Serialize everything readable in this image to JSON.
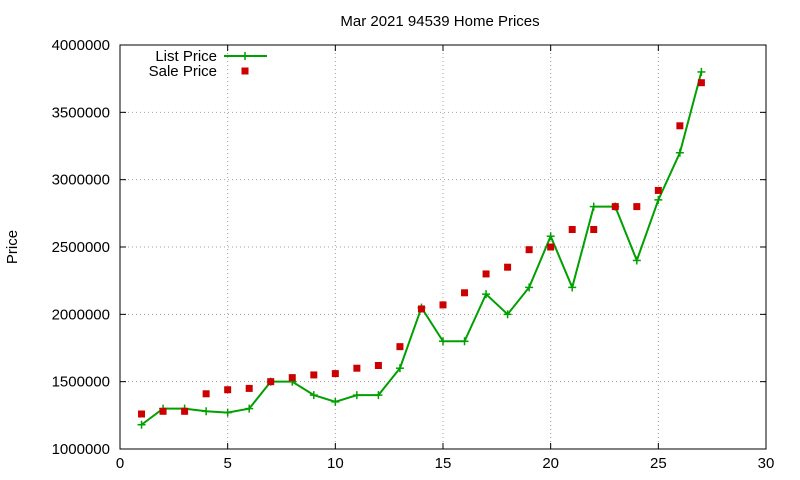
{
  "chart_data": {
    "type": "line",
    "title": "Mar 2021 94539 Home Prices",
    "xlabel": "",
    "ylabel": "Price",
    "xlim": [
      0,
      30
    ],
    "ylim": [
      1000000,
      4000000
    ],
    "x_ticks": [
      0,
      5,
      10,
      15,
      20,
      25,
      30
    ],
    "y_ticks": [
      1000000,
      1500000,
      2000000,
      2500000,
      3000000,
      3500000,
      4000000
    ],
    "x_tick_labels": [
      "0",
      "5",
      "10",
      "15",
      "20",
      "25",
      "30"
    ],
    "y_tick_labels": [
      "1000000",
      "1500000",
      "2000000",
      "2500000",
      "3000000",
      "3500000",
      "4000000"
    ],
    "grid": true,
    "legend_position": "top-left",
    "x": [
      1,
      2,
      3,
      4,
      5,
      6,
      7,
      8,
      9,
      10,
      11,
      12,
      13,
      14,
      15,
      16,
      17,
      18,
      19,
      20,
      21,
      22,
      23,
      24,
      25,
      26,
      27
    ],
    "series": [
      {
        "name": "List Price",
        "style": "line-with-plus-markers",
        "color": "#00a000",
        "values": [
          1180000,
          1300000,
          1300000,
          1280000,
          1270000,
          1300000,
          1500000,
          1500000,
          1400000,
          1350000,
          1400000,
          1400000,
          1600000,
          2050000,
          1800000,
          1800000,
          2150000,
          2000000,
          2200000,
          2580000,
          2200000,
          2800000,
          2800000,
          2400000,
          2850000,
          3200000,
          3800000
        ]
      },
      {
        "name": "Sale Price",
        "style": "square-markers",
        "color": "#cc0000",
        "values": [
          1260000,
          1280000,
          1280000,
          1410000,
          1440000,
          1450000,
          1500000,
          1530000,
          1550000,
          1560000,
          1600000,
          1620000,
          1760000,
          2040000,
          2070000,
          2160000,
          2300000,
          2350000,
          2480000,
          2500000,
          2630000,
          2630000,
          2800000,
          2800000,
          2920000,
          3400000,
          3720000
        ]
      }
    ]
  }
}
